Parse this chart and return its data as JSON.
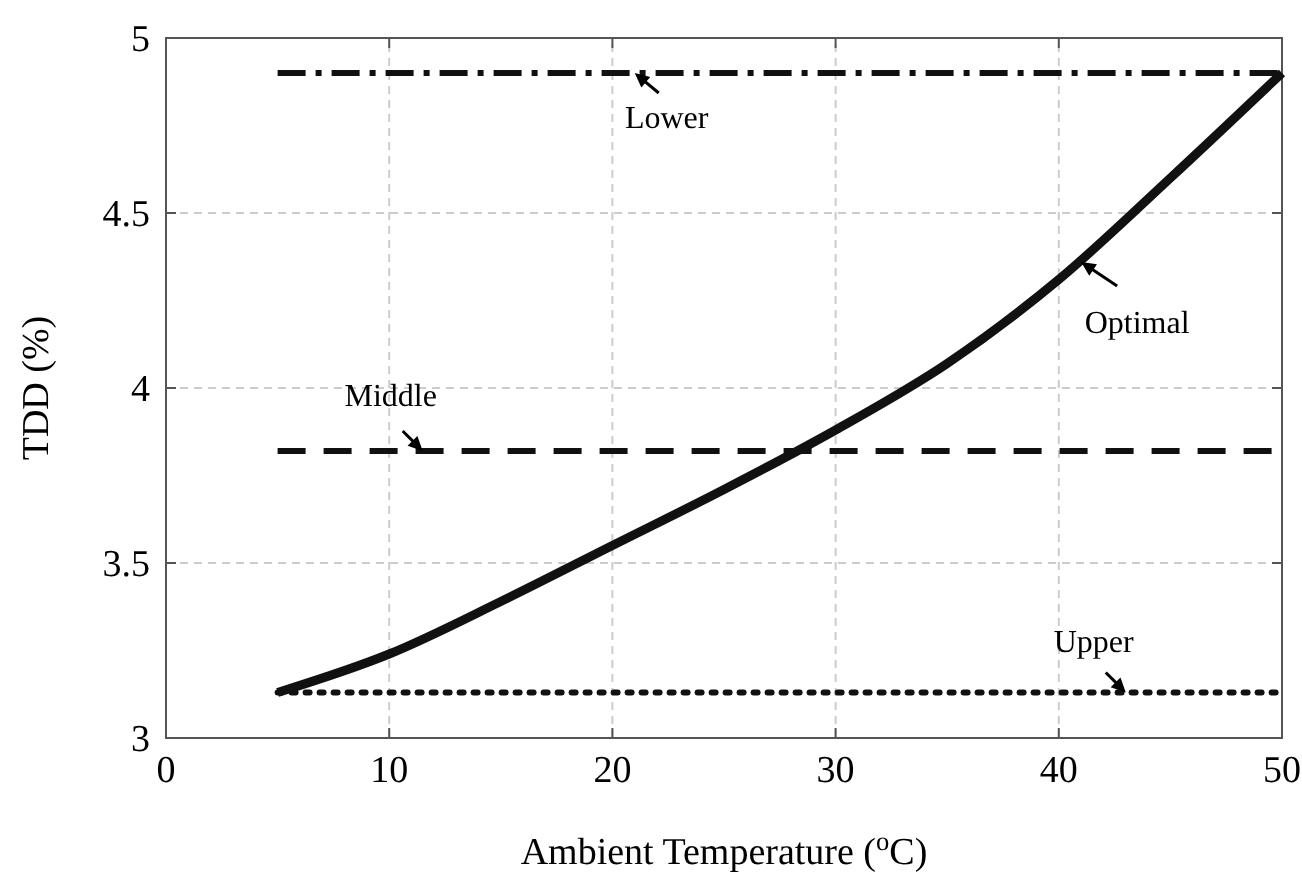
{
  "chart_data": {
    "type": "line",
    "xlabel": "Ambient Temperature ($^{o}$C)",
    "ylabel": "TDD (%)",
    "xlim": [
      0,
      50
    ],
    "ylim": [
      3,
      5
    ],
    "xticks": [
      0,
      10,
      20,
      30,
      40,
      50
    ],
    "yticks": [
      3,
      3.5,
      4,
      4.5,
      5
    ],
    "grid": true,
    "marker": "none",
    "series": [
      {
        "color": "#111111",
        "line_style": "solid",
        "x": [
          5,
          10,
          15,
          20,
          25,
          30,
          35,
          40,
          45,
          50
        ],
        "values": [
          3.13,
          3.24,
          3.39,
          3.55,
          3.71,
          3.88,
          4.07,
          4.31,
          4.6,
          4.9
        ]
      },
      {
        "color": "#111111",
        "line_style": "dashdot",
        "x": [
          5,
          50
        ],
        "values": [
          4.9,
          4.9
        ]
      },
      {
        "color": "#111111",
        "line_style": "dashed",
        "x": [
          5,
          50
        ],
        "values": [
          3.82,
          3.82
        ]
      },
      {
        "color": "#111111",
        "line_style": "dotted",
        "x": [
          5,
          50
        ],
        "values": [
          3.13,
          3.13
        ]
      }
    ],
    "annotations": [
      {
        "text": "Lower",
        "x": 21,
        "y": 4.9
      },
      {
        "text": "Middle",
        "x": 11.5,
        "y": 3.82
      },
      {
        "text": "Optimal",
        "x": 41,
        "y": 4.36
      },
      {
        "text": "Upper",
        "x": 43,
        "y": 3.13
      }
    ]
  }
}
